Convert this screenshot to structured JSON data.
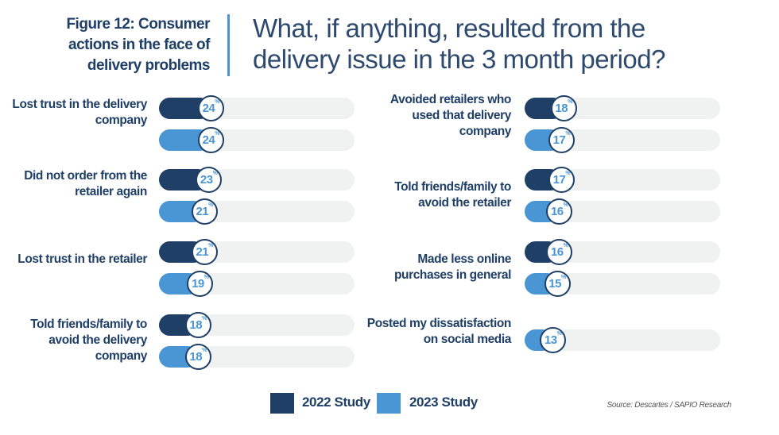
{
  "header": {
    "figure_title": "Figure 12: Consumer actions in the face of delivery problems",
    "question": "What, if anything, resulted from the delivery issue in the 3 month period?"
  },
  "colors": {
    "s2022": "#1f3f66",
    "s2023": "#4a95d3",
    "track": "#f0f1f1"
  },
  "chart_data": {
    "type": "bar",
    "orientation": "horizontal",
    "unit": "%",
    "xlim": [
      0,
      100
    ],
    "categories": [
      "Lost trust in the delivery company",
      "Did not order from the retailer again",
      "Lost trust in the retailer",
      "Told friends/family to avoid the delivery company",
      "Avoided retailers who used that delivery company",
      "Told friends/family to avoid the retailer",
      "Made less online purchases in general",
      "Posted my dissatisfaction on social media"
    ],
    "series": [
      {
        "name": "2022 Study",
        "values": [
          24,
          23,
          21,
          18,
          18,
          17,
          16,
          null
        ]
      },
      {
        "name": "2023 Study",
        "values": [
          24,
          21,
          19,
          18,
          17,
          16,
          15,
          13
        ]
      }
    ],
    "legend_position": "bottom"
  },
  "legend": {
    "s2022": "2022 Study",
    "s2023": "2023 Study"
  },
  "source": "Source: Descartes / SAPIO Research",
  "percent_sign": "%"
}
